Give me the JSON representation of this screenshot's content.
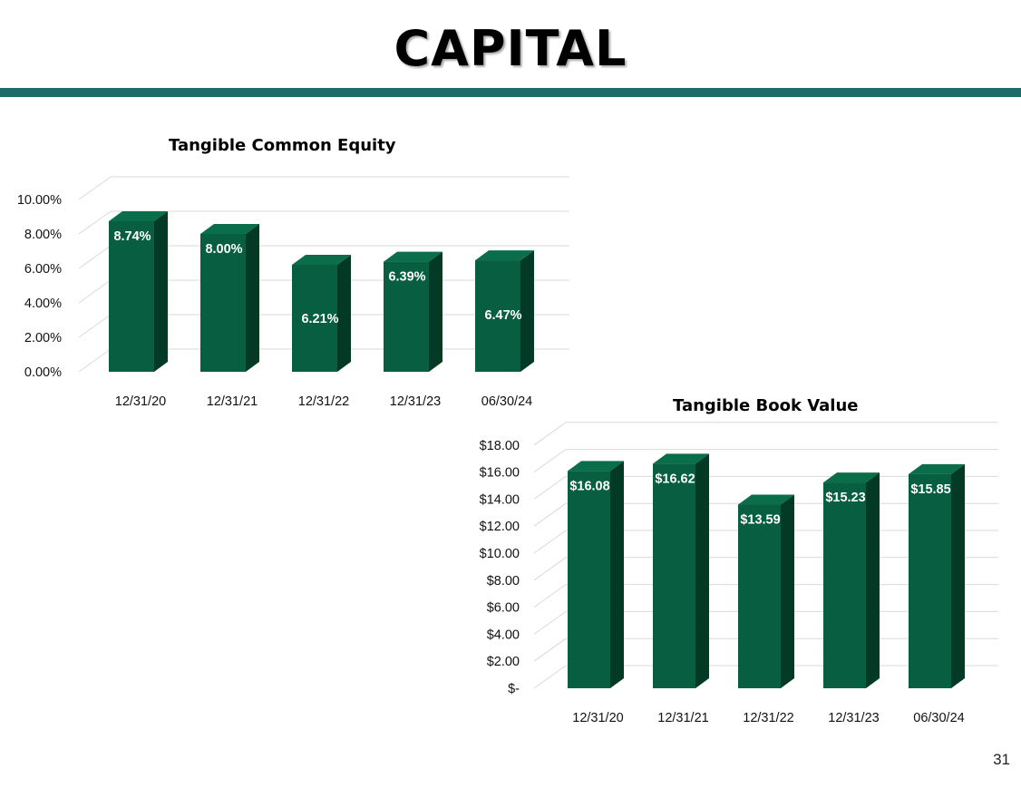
{
  "page": {
    "title": "CAPITAL",
    "page_number": "31"
  },
  "colors": {
    "rule": "#1e6b6a",
    "bar_front": "#075e40",
    "bar_side": "#033a26",
    "bar_top": "#0a6e4b",
    "grid": "#d9d9d9"
  },
  "chart_data": [
    {
      "type": "bar",
      "title": "Tangible Common Equity",
      "categories": [
        "12/31/20",
        "12/31/21",
        "12/31/22",
        "12/31/23",
        "06/30/24"
      ],
      "values": [
        8.74,
        8.0,
        6.21,
        6.39,
        6.47
      ],
      "data_labels": [
        "8.74%",
        "8.00%",
        "6.21%",
        "6.39%",
        "6.47%"
      ],
      "y_ticks": [
        "0.00%",
        "2.00%",
        "4.00%",
        "6.00%",
        "8.00%",
        "10.00%"
      ],
      "ylim": [
        0,
        10
      ],
      "grid": true,
      "style": "3d-column"
    },
    {
      "type": "bar",
      "title": "Tangible Book Value",
      "categories": [
        "12/31/20",
        "12/31/21",
        "12/31/22",
        "12/31/23",
        "06/30/24"
      ],
      "values": [
        16.08,
        16.62,
        13.59,
        15.23,
        15.85
      ],
      "data_labels": [
        "$16.08",
        "$16.62",
        "$13.59",
        "$15.23",
        "$15.85"
      ],
      "y_ticks": [
        "$-",
        "$2.00",
        "$4.00",
        "$6.00",
        "$8.00",
        "$10.00",
        "$12.00",
        "$14.00",
        "$16.00",
        "$18.00"
      ],
      "ylim": [
        0,
        18
      ],
      "grid": true,
      "style": "3d-column"
    }
  ]
}
